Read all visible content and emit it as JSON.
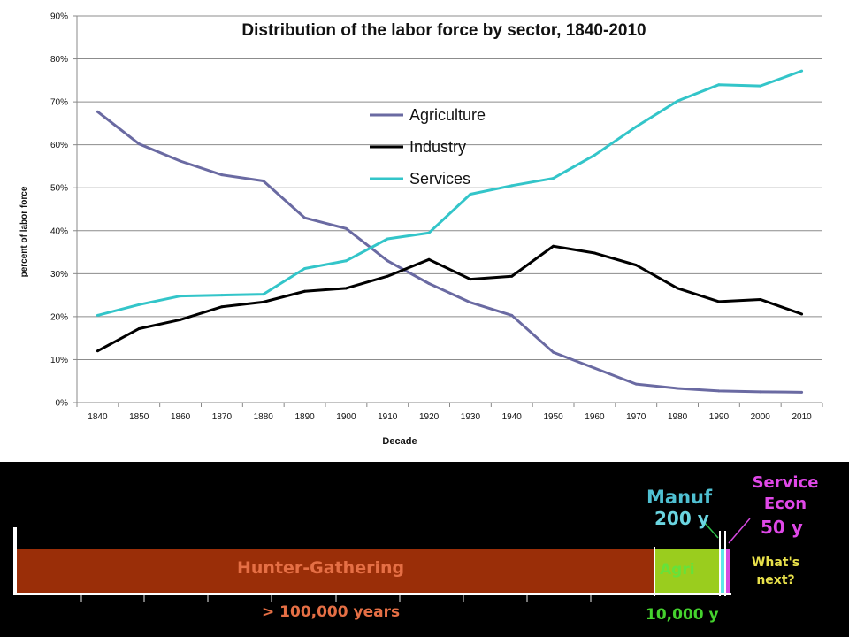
{
  "chart_data": {
    "type": "line",
    "title": "Distribution of the labor force by sector, 1840-2010",
    "xlabel": "Decade",
    "ylabel": "percent of labor force",
    "x": [
      1840,
      1850,
      1860,
      1870,
      1880,
      1890,
      1900,
      1910,
      1920,
      1930,
      1940,
      1950,
      1960,
      1970,
      1980,
      1990,
      2000,
      2010
    ],
    "y_ticks": [
      "0%",
      "10%",
      "20%",
      "30%",
      "40%",
      "50%",
      "60%",
      "70%",
      "80%",
      "90%"
    ],
    "ylim": [
      0,
      90
    ],
    "grid": true,
    "legend_position": "center-top",
    "series": [
      {
        "name": "Agriculture",
        "color": "#6a6aa2",
        "values": [
          67.7,
          60.2,
          56.2,
          53.0,
          51.6,
          43.0,
          40.5,
          33.0,
          27.7,
          23.3,
          20.3,
          11.7,
          8.0,
          4.3,
          3.3,
          2.7,
          2.5,
          2.4
        ]
      },
      {
        "name": "Industry",
        "color": "#000000",
        "values": [
          12.0,
          17.2,
          19.3,
          22.3,
          23.4,
          25.9,
          26.6,
          29.4,
          33.3,
          28.7,
          29.4,
          36.4,
          34.8,
          32.0,
          26.6,
          23.5,
          24.0,
          20.6
        ]
      },
      {
        "name": "Services",
        "color": "#33c5c9",
        "values": [
          20.3,
          22.8,
          24.8,
          25.0,
          25.2,
          31.2,
          33.0,
          38.1,
          39.5,
          48.5,
          50.5,
          52.2,
          57.6,
          64.2,
          70.2,
          74.0,
          73.7,
          77.2
        ]
      }
    ]
  },
  "timeline": {
    "eras": [
      {
        "label": "Hunter-Gathering",
        "color": "#9a2e08",
        "text_color": "#e56f45"
      },
      {
        "label": "Agri",
        "color": "#9acd1e",
        "text_color": "#66e23a"
      },
      {
        "label": "Manuf",
        "color": "#5ee6e8",
        "text_color": "#4fc0d2"
      },
      {
        "label": "Service Econ",
        "color": "#d649e0",
        "text_color": "#e048e8"
      }
    ],
    "years_hunter": "> 100,000 years",
    "years_agri": "10,000 y",
    "years_manuf": "200 y",
    "years_service": "50 y",
    "next_label": "What's next?",
    "colors": {
      "years_hunter": "#e56f45",
      "years_agri": "#45d22e",
      "years_manuf": "#6ad5e0",
      "years_service": "#e048e8",
      "next": "#e8e04a"
    }
  }
}
